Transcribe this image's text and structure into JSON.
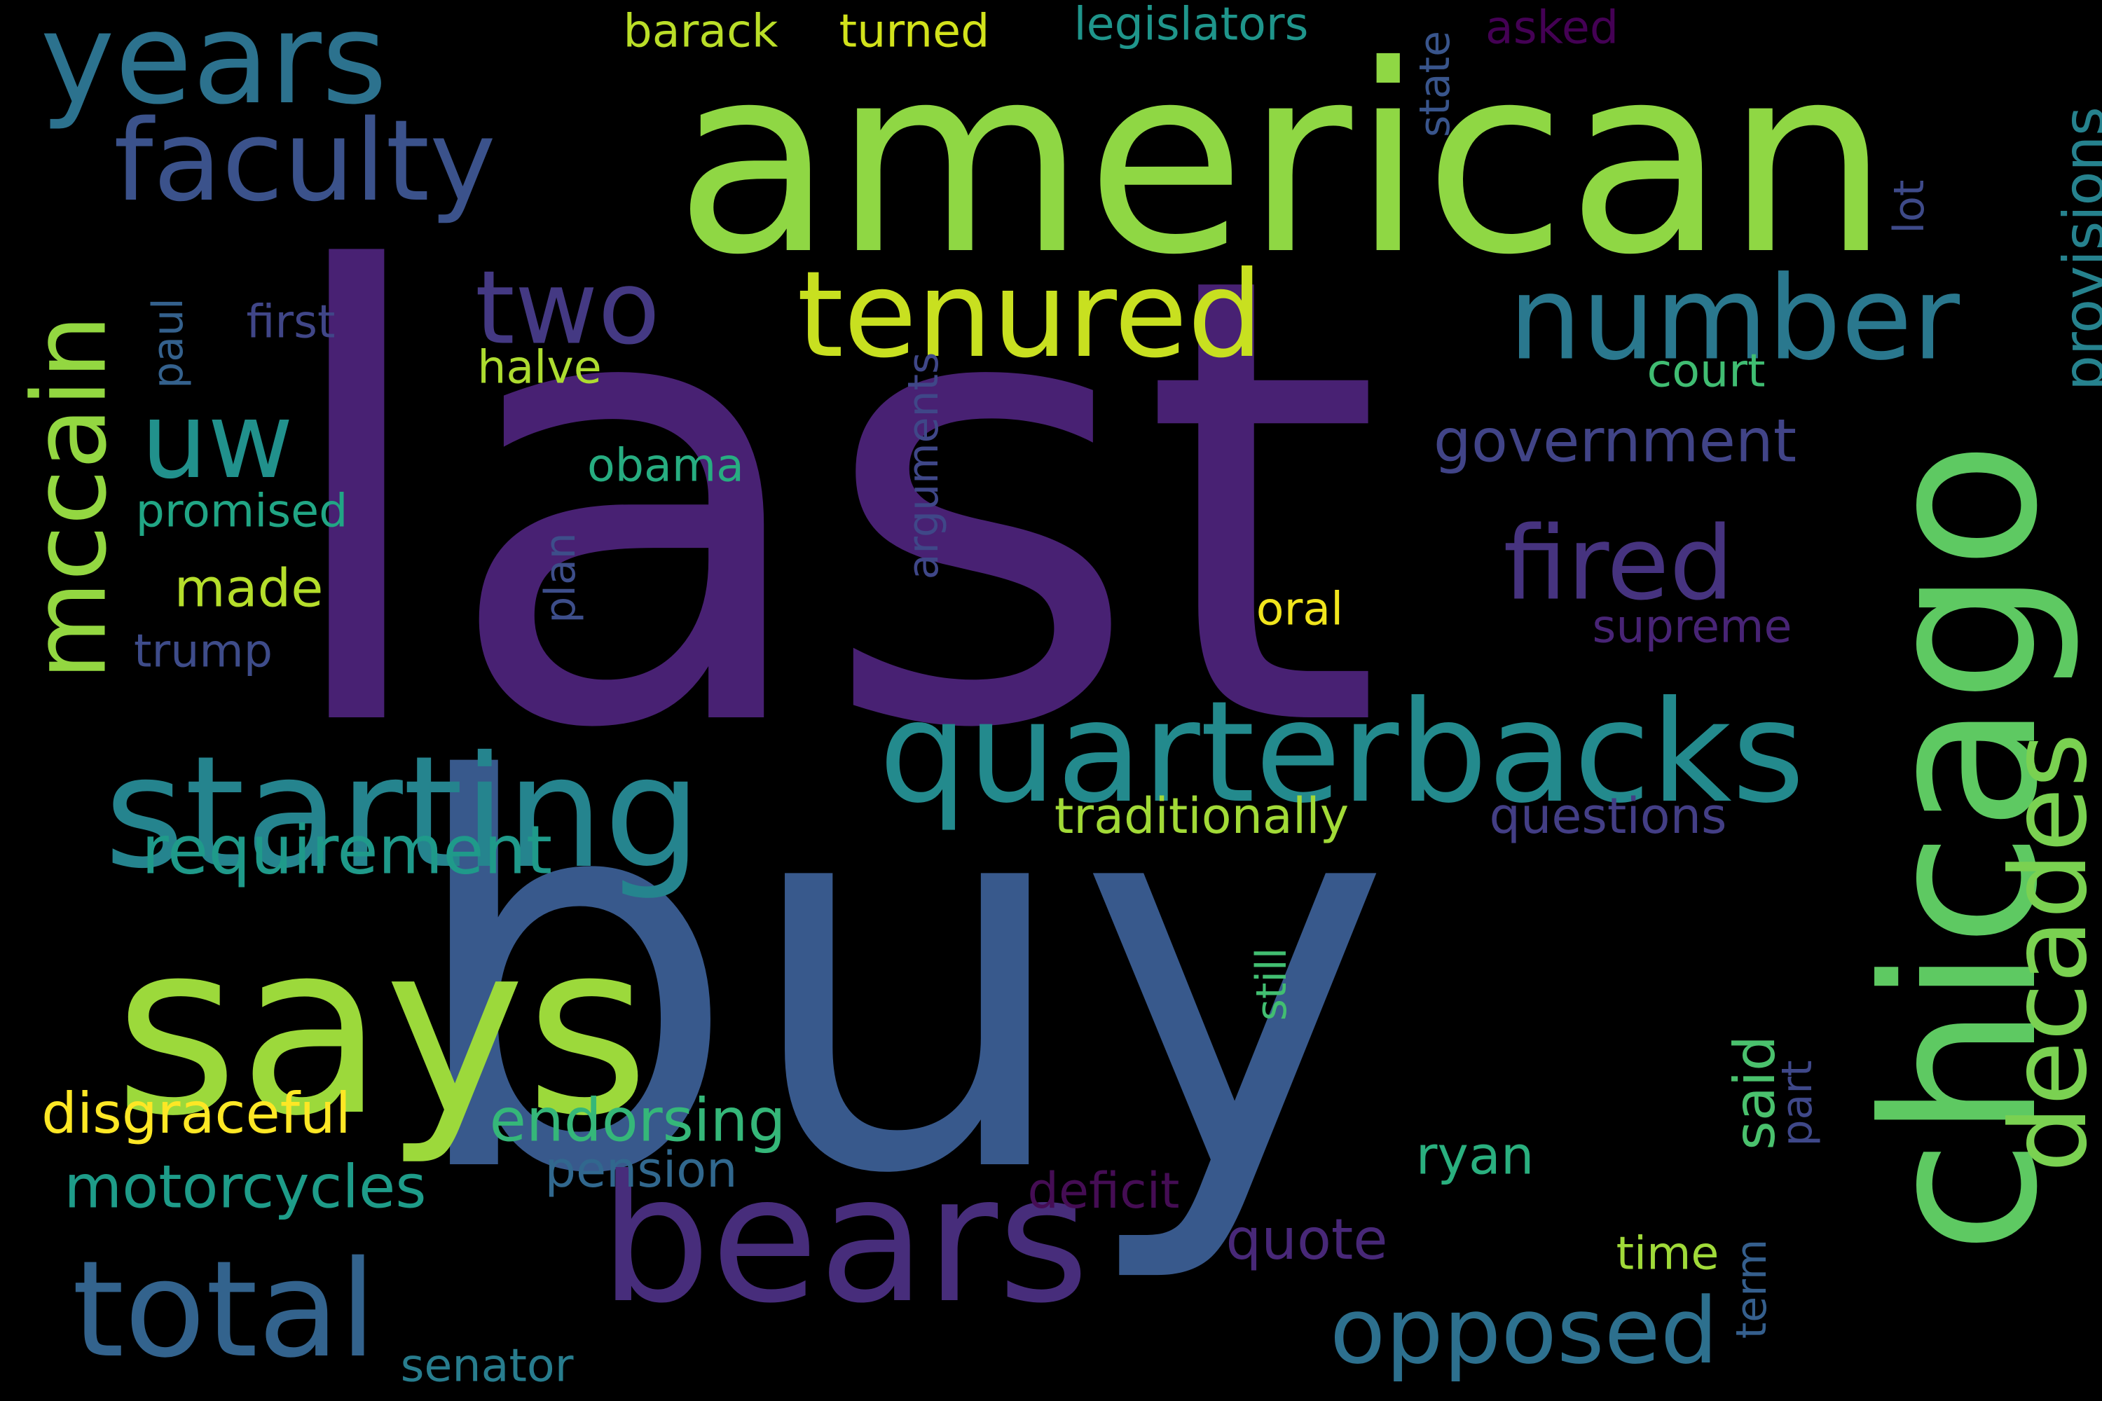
{
  "words": [
    {
      "text": "last",
      "color": "#482173",
      "orientation": "horizontal"
    },
    {
      "text": "buy",
      "color": "#38598c",
      "orientation": "horizontal"
    },
    {
      "text": "american",
      "color": "#8fd744",
      "orientation": "horizontal"
    },
    {
      "text": "says",
      "color": "#9cd93b",
      "orientation": "horizontal"
    },
    {
      "text": "chicago",
      "color": "#5ec962",
      "orientation": "vertical"
    },
    {
      "text": "bears",
      "color": "#472d7b",
      "orientation": "horizontal"
    },
    {
      "text": "starting",
      "color": "#25848e",
      "orientation": "horizontal"
    },
    {
      "text": "quarterbacks",
      "color": "#238a8d",
      "orientation": "horizontal"
    },
    {
      "text": "total",
      "color": "#33638d",
      "orientation": "horizontal"
    },
    {
      "text": "years",
      "color": "#2c728e",
      "orientation": "horizontal"
    },
    {
      "text": "tenured",
      "color": "#c8e020",
      "orientation": "horizontal"
    },
    {
      "text": "number",
      "color": "#2a788e",
      "orientation": "horizontal"
    },
    {
      "text": "faculty",
      "color": "#3b528b",
      "orientation": "horizontal"
    },
    {
      "text": "decades",
      "color": "#7ad151",
      "orientation": "vertical"
    },
    {
      "text": "uw",
      "color": "#21918c",
      "orientation": "horizontal"
    },
    {
      "text": "two",
      "color": "#443983",
      "orientation": "horizontal"
    },
    {
      "text": "mccain",
      "color": "#93d741",
      "orientation": "vertical"
    },
    {
      "text": "fired",
      "color": "#46337f",
      "orientation": "horizontal"
    },
    {
      "text": "opposed",
      "color": "#2d708e",
      "orientation": "horizontal"
    },
    {
      "text": "requirement",
      "color": "#1f9a8a",
      "orientation": "horizontal"
    },
    {
      "text": "government",
      "color": "#414487",
      "orientation": "horizontal"
    },
    {
      "text": "endorsing",
      "color": "#35b779",
      "orientation": "horizontal"
    },
    {
      "text": "motorcycles",
      "color": "#1e9c89",
      "orientation": "horizontal"
    },
    {
      "text": "disgraceful",
      "color": "#fde725",
      "orientation": "horizontal"
    },
    {
      "text": "quote",
      "color": "#482878",
      "orientation": "horizontal"
    },
    {
      "text": "provisions",
      "color": "#26828e",
      "orientation": "vertical"
    },
    {
      "text": "said",
      "color": "#4ac16d",
      "orientation": "vertical"
    },
    {
      "text": "ryan",
      "color": "#2ab07f",
      "orientation": "horizontal"
    },
    {
      "text": "made",
      "color": "#b5de2b",
      "orientation": "horizontal"
    },
    {
      "text": "traditionally",
      "color": "#a2da37",
      "orientation": "horizontal"
    },
    {
      "text": "questions",
      "color": "#433e85",
      "orientation": "horizontal"
    },
    {
      "text": "pension",
      "color": "#31688e",
      "orientation": "horizontal"
    },
    {
      "text": "deficit",
      "color": "#450d54",
      "orientation": "horizontal"
    },
    {
      "text": "barack",
      "color": "#bade28",
      "orientation": "horizontal"
    },
    {
      "text": "turned",
      "color": "#d2e21b",
      "orientation": "horizontal"
    },
    {
      "text": "legislators",
      "color": "#1f958b",
      "orientation": "horizontal"
    },
    {
      "text": "asked",
      "color": "#440154",
      "orientation": "horizontal"
    },
    {
      "text": "state",
      "color": "#39558c",
      "orientation": "vertical"
    },
    {
      "text": "lot",
      "color": "#3e4a89",
      "orientation": "vertical"
    },
    {
      "text": "first",
      "color": "#404688",
      "orientation": "horizontal"
    },
    {
      "text": "paul",
      "color": "#34618d",
      "orientation": "vertical"
    },
    {
      "text": "halve",
      "color": "#addc30",
      "orientation": "horizontal"
    },
    {
      "text": "obama",
      "color": "#27ad81",
      "orientation": "horizontal"
    },
    {
      "text": "promised",
      "color": "#21a685",
      "orientation": "horizontal"
    },
    {
      "text": "plan",
      "color": "#3d4e8a",
      "orientation": "vertical"
    },
    {
      "text": "arguments",
      "color": "#3f4788",
      "orientation": "vertical"
    },
    {
      "text": "court",
      "color": "#40bd72",
      "orientation": "horizontal"
    },
    {
      "text": "trump",
      "color": "#3e4c8a",
      "orientation": "horizontal"
    },
    {
      "text": "oral",
      "color": "#f1e51d",
      "orientation": "horizontal"
    },
    {
      "text": "supreme",
      "color": "#482475",
      "orientation": "horizontal"
    },
    {
      "text": "still",
      "color": "#42be71",
      "orientation": "vertical"
    },
    {
      "text": "part",
      "color": "#3f4889",
      "orientation": "vertical"
    },
    {
      "text": "time",
      "color": "#a0da39",
      "orientation": "horizontal"
    },
    {
      "text": "term",
      "color": "#355f8d",
      "orientation": "vertical"
    },
    {
      "text": "senator",
      "color": "#287d8e",
      "orientation": "horizontal"
    }
  ]
}
